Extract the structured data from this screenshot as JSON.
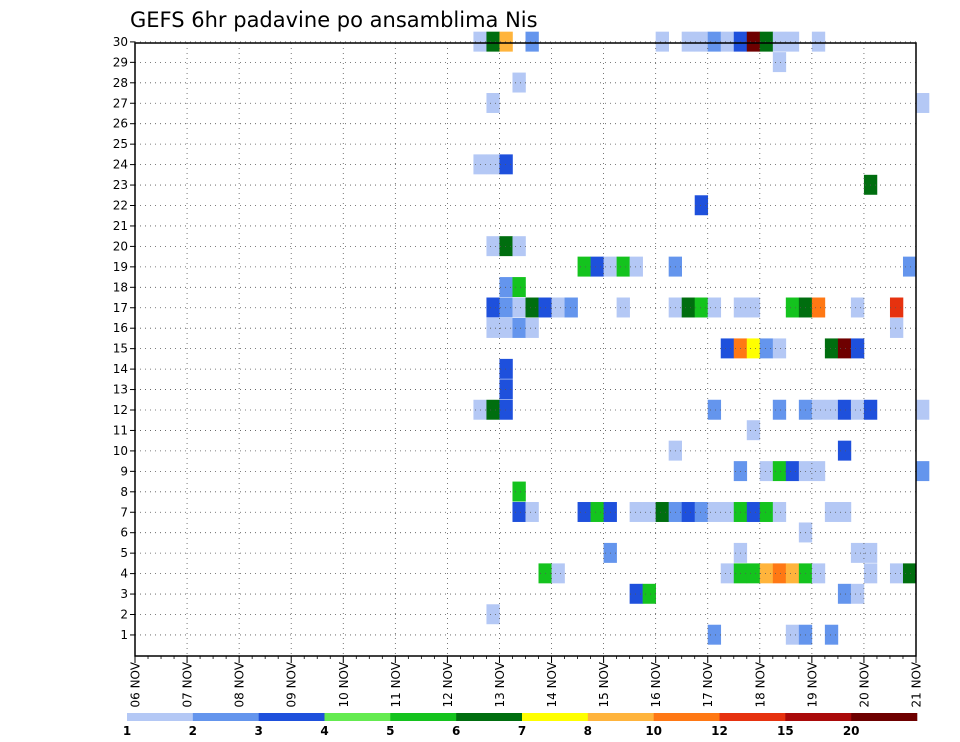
{
  "chart_data": {
    "type": "heatmap",
    "title": "GEFS 6hr padavine po ansamblima Nis",
    "x_tick_labels": [
      "06 NOV",
      "07 NOV",
      "08 NOV",
      "09 NOV",
      "10 NOV",
      "11 NOV",
      "12 NOV",
      "13 NOV",
      "14 NOV",
      "15 NOV",
      "16 NOV",
      "17 NOV",
      "18 NOV",
      "19 NOV",
      "20 NOV",
      "21 NOV"
    ],
    "y_tick_labels": [
      "1",
      "2",
      "3",
      "4",
      "5",
      "6",
      "7",
      "8",
      "9",
      "10",
      "11",
      "12",
      "13",
      "14",
      "15",
      "16",
      "17",
      "18",
      "19",
      "20",
      "21",
      "22",
      "23",
      "24",
      "25",
      "26",
      "27",
      "28",
      "29",
      "30"
    ],
    "xlim_days": [
      0,
      15
    ],
    "ylim": [
      0.5,
      30.5
    ],
    "grid": true,
    "legend": {
      "placement": "bottom",
      "levels": [
        "1",
        "2",
        "3",
        "4",
        "5",
        "6",
        "7",
        "8",
        "10",
        "12",
        "15",
        "20"
      ],
      "colors": [
        "#b4c8f5",
        "#6495ed",
        "#1e50dc",
        "#64eb50",
        "#14c31e",
        "#006e0f",
        "#ffff00",
        "#ffb43c",
        "#ff7814",
        "#e6320f",
        "#aa0a0a",
        "#6e0000"
      ]
    },
    "cells_note": "each cell: [member, time_step(6h index from 06 NOV 00Z), color_class(0-11)]",
    "cells": [
      [
        30,
        26,
        0
      ],
      [
        30,
        27,
        5
      ],
      [
        30,
        28,
        7
      ],
      [
        30,
        30,
        1
      ],
      [
        30,
        40,
        0
      ],
      [
        30,
        42,
        0
      ],
      [
        30,
        43,
        0
      ],
      [
        30,
        44,
        1
      ],
      [
        30,
        45,
        0
      ],
      [
        30,
        46,
        2
      ],
      [
        30,
        47,
        11
      ],
      [
        30,
        48,
        5
      ],
      [
        30,
        49,
        0
      ],
      [
        30,
        50,
        0
      ],
      [
        30,
        52,
        0
      ],
      [
        29,
        49,
        0
      ],
      [
        28,
        29,
        0
      ],
      [
        27,
        27,
        0
      ],
      [
        27,
        60,
        0
      ],
      [
        24,
        26,
        0
      ],
      [
        24,
        27,
        0
      ],
      [
        24,
        28,
        2
      ],
      [
        23,
        56,
        5
      ],
      [
        22,
        43,
        2
      ],
      [
        20,
        27,
        0
      ],
      [
        20,
        28,
        5
      ],
      [
        20,
        29,
        0
      ],
      [
        19,
        34,
        4
      ],
      [
        19,
        35,
        2
      ],
      [
        19,
        36,
        0
      ],
      [
        19,
        37,
        4
      ],
      [
        19,
        38,
        0
      ],
      [
        19,
        41,
        1
      ],
      [
        19,
        59,
        1
      ],
      [
        18,
        28,
        1
      ],
      [
        18,
        29,
        4
      ],
      [
        17,
        43,
        0
      ],
      [
        17,
        55,
        0
      ],
      [
        17,
        27,
        2
      ],
      [
        17,
        28,
        1
      ],
      [
        17,
        29,
        0
      ],
      [
        17,
        30,
        5
      ],
      [
        17,
        31,
        2
      ],
      [
        17,
        32,
        0
      ],
      [
        17,
        33,
        1
      ],
      [
        17,
        37,
        0
      ],
      [
        17,
        41,
        0
      ],
      [
        17,
        42,
        5
      ],
      [
        17,
        43,
        4
      ],
      [
        17,
        44,
        0
      ],
      [
        17,
        46,
        0
      ],
      [
        17,
        47,
        0
      ],
      [
        17,
        50,
        4
      ],
      [
        17,
        51,
        5
      ],
      [
        17,
        52,
        8
      ],
      [
        17,
        58,
        9
      ],
      [
        16,
        27,
        0
      ],
      [
        16,
        28,
        0
      ],
      [
        16,
        29,
        1
      ],
      [
        16,
        30,
        0
      ],
      [
        16,
        58,
        0
      ],
      [
        15,
        53,
        5
      ],
      [
        15,
        54,
        11
      ],
      [
        15,
        55,
        2
      ],
      [
        15,
        45,
        2
      ],
      [
        15,
        46,
        8
      ],
      [
        15,
        47,
        6
      ],
      [
        15,
        48,
        1
      ],
      [
        15,
        49,
        0
      ],
      [
        14,
        28,
        2
      ],
      [
        13,
        28,
        2
      ],
      [
        12,
        26,
        0
      ],
      [
        12,
        27,
        5
      ],
      [
        12,
        28,
        2
      ],
      [
        12,
        44,
        1
      ],
      [
        12,
        49,
        1
      ],
      [
        12,
        51,
        1
      ],
      [
        12,
        52,
        0
      ],
      [
        12,
        53,
        0
      ],
      [
        12,
        54,
        2
      ],
      [
        12,
        55,
        0
      ],
      [
        12,
        56,
        2
      ],
      [
        12,
        60,
        0
      ],
      [
        11,
        47,
        0
      ],
      [
        10,
        41,
        0
      ],
      [
        10,
        54,
        2
      ],
      [
        9,
        46,
        1
      ],
      [
        9,
        48,
        0
      ],
      [
        9,
        49,
        4
      ],
      [
        9,
        50,
        2
      ],
      [
        9,
        51,
        0
      ],
      [
        9,
        52,
        0
      ],
      [
        9,
        60,
        1
      ],
      [
        8,
        29,
        4
      ],
      [
        7,
        29,
        2
      ],
      [
        7,
        30,
        0
      ],
      [
        7,
        34,
        2
      ],
      [
        7,
        35,
        4
      ],
      [
        7,
        36,
        2
      ],
      [
        7,
        38,
        0
      ],
      [
        7,
        39,
        0
      ],
      [
        7,
        40,
        5
      ],
      [
        7,
        41,
        1
      ],
      [
        7,
        42,
        2
      ],
      [
        7,
        43,
        1
      ],
      [
        7,
        44,
        0
      ],
      [
        7,
        45,
        0
      ],
      [
        7,
        46,
        4
      ],
      [
        7,
        47,
        2
      ],
      [
        7,
        48,
        4
      ],
      [
        7,
        49,
        0
      ],
      [
        7,
        53,
        0
      ],
      [
        7,
        54,
        0
      ],
      [
        6,
        51,
        0
      ],
      [
        5,
        36,
        1
      ],
      [
        5,
        46,
        0
      ],
      [
        5,
        55,
        0
      ],
      [
        5,
        56,
        0
      ],
      [
        4,
        31,
        4
      ],
      [
        4,
        32,
        0
      ],
      [
        4,
        45,
        0
      ],
      [
        4,
        46,
        4
      ],
      [
        4,
        47,
        4
      ],
      [
        4,
        48,
        7
      ],
      [
        4,
        49,
        8
      ],
      [
        4,
        50,
        7
      ],
      [
        4,
        51,
        4
      ],
      [
        4,
        52,
        0
      ],
      [
        4,
        56,
        0
      ],
      [
        4,
        58,
        0
      ],
      [
        4,
        59,
        5
      ],
      [
        3,
        38,
        2
      ],
      [
        3,
        39,
        4
      ],
      [
        3,
        54,
        1
      ],
      [
        3,
        55,
        0
      ],
      [
        2,
        27,
        0
      ],
      [
        1,
        44,
        1
      ],
      [
        1,
        50,
        0
      ],
      [
        1,
        51,
        1
      ],
      [
        1,
        53,
        1
      ]
    ]
  }
}
